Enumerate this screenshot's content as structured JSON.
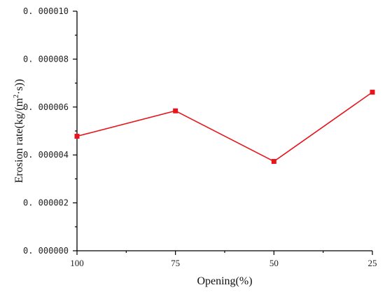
{
  "chart_data": {
    "type": "line",
    "title": "",
    "xlabel": "Opening(%)",
    "ylabel_main": "Erosion rate(kg/(m",
    "ylabel_sup": "2",
    "ylabel_tail": "·s))",
    "categories": [
      "100",
      "75",
      "50",
      "25"
    ],
    "ylim": [
      0,
      1e-05
    ],
    "ytick_values": [
      0,
      2e-06,
      4e-06,
      6e-06,
      8e-06,
      1e-05
    ],
    "ytick_labels": [
      "0. 000000",
      "0. 000002",
      "0. 000004",
      "0. 000006",
      "0. 000008",
      "0. 000010"
    ],
    "series": [
      {
        "values": [
          4.78e-06,
          5.84e-06,
          3.73e-06,
          6.62e-06
        ],
        "color": "#e8141c",
        "marker": "square"
      }
    ],
    "grid": false,
    "legend": "none"
  }
}
